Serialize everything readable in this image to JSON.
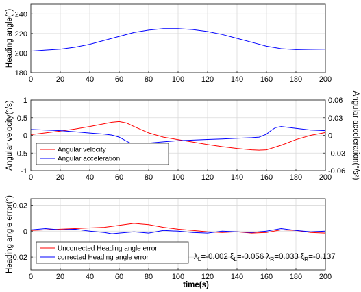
{
  "xlabel": "time(s)",
  "annotation": {
    "parts": [
      {
        "t": "λ"
      },
      {
        "t": "L",
        "sub": true
      },
      {
        "t": "=-0.002 ξ"
      },
      {
        "t": "L",
        "sub": true
      },
      {
        "t": "=-0.056 λ"
      },
      {
        "t": "R",
        "sub": true
      },
      {
        "t": "=0.033 ξ"
      },
      {
        "t": "R",
        "sub": true
      },
      {
        "t": "=-0.137"
      }
    ]
  },
  "chart_data": [
    {
      "type": "line",
      "xlim": [
        0,
        200
      ],
      "ylim": [
        180,
        250
      ],
      "xticks": [
        0,
        20,
        40,
        60,
        80,
        100,
        120,
        140,
        160,
        180,
        200
      ],
      "yticks": [
        180,
        200,
        220,
        240
      ],
      "ylabel": "Heading angle(°)",
      "grid": true,
      "series": [
        {
          "color": "#0000ff",
          "x": [
            0,
            10,
            20,
            30,
            40,
            50,
            60,
            70,
            80,
            90,
            100,
            110,
            120,
            130,
            140,
            150,
            160,
            170,
            180,
            190,
            200
          ],
          "y": [
            202,
            203,
            204,
            206,
            209,
            213,
            217,
            221,
            223.5,
            225,
            225,
            224,
            222,
            219,
            215,
            211,
            207,
            204.5,
            203.5,
            203.8,
            204
          ]
        }
      ]
    },
    {
      "type": "line",
      "xlim": [
        0,
        200
      ],
      "ylim": [
        -1,
        1
      ],
      "y2lim": [
        -0.06,
        0.06
      ],
      "xticks": [
        0,
        20,
        40,
        60,
        80,
        100,
        120,
        140,
        160,
        180,
        200
      ],
      "yticks": [
        -1,
        -0.5,
        0,
        0.5,
        1
      ],
      "y2ticks": [
        -0.06,
        -0.03,
        0,
        0.03,
        0.06
      ],
      "ytick_labels": [
        "-1",
        "-0.5",
        "0",
        "0.5",
        "1"
      ],
      "y2tick_labels": [
        "-0.06",
        "-0.03",
        "0",
        "0.03",
        "0.06"
      ],
      "ylabel": "Angular velocity(°/s)",
      "y2label": "Angular acceleration(°/s²)",
      "legend": "lower-left",
      "grid": true,
      "series": [
        {
          "name": "Angular velocity",
          "color": "#ff0000",
          "axis": "left",
          "x": [
            0,
            10,
            20,
            30,
            40,
            50,
            55,
            60,
            65,
            70,
            80,
            90,
            100,
            110,
            120,
            130,
            140,
            150,
            155,
            160,
            170,
            180,
            190,
            200
          ],
          "y": [
            0.02,
            0.07,
            0.12,
            0.18,
            0.25,
            0.33,
            0.37,
            0.39,
            0.35,
            0.25,
            0.07,
            -0.05,
            -0.12,
            -0.19,
            -0.26,
            -0.32,
            -0.37,
            -0.41,
            -0.42,
            -0.41,
            -0.28,
            -0.12,
            0.0,
            0.08
          ]
        },
        {
          "name": "Angular acceleration",
          "color": "#0000ff",
          "axis": "right",
          "x": [
            0,
            10,
            20,
            30,
            40,
            50,
            55,
            60,
            65,
            70,
            72,
            75,
            80,
            90,
            100,
            110,
            120,
            130,
            140,
            150,
            155,
            160,
            163,
            166,
            170,
            180,
            190,
            200
          ],
          "y": [
            0.01,
            0.009,
            0.008,
            0.006,
            0.004,
            0.002,
            0.0005,
            -0.003,
            -0.01,
            -0.016,
            -0.017,
            -0.016,
            -0.013,
            -0.011,
            -0.009,
            -0.008,
            -0.007,
            -0.006,
            -0.005,
            -0.004,
            -0.003,
            0.002,
            0.008,
            0.013,
            0.015,
            0.012,
            0.009,
            0.008
          ]
        }
      ]
    },
    {
      "type": "line",
      "xlim": [
        0,
        200
      ],
      "ylim": [
        -0.03,
        0.025
      ],
      "xticks": [
        0,
        20,
        40,
        60,
        80,
        100,
        120,
        140,
        160,
        180,
        200
      ],
      "yticks": [
        -0.02,
        0,
        0.02
      ],
      "ytick_labels": [
        "-0.02",
        "0",
        "0.02"
      ],
      "ylabel": "Heading angle error(°)",
      "legend": "lower-left",
      "grid": true,
      "series": [
        {
          "name": "Uncorrected  Heading angle error",
          "color": "#ff0000",
          "x": [
            0,
            10,
            20,
            30,
            40,
            50,
            60,
            70,
            75,
            80,
            90,
            100,
            110,
            120,
            130,
            140,
            150,
            160,
            170,
            180,
            190,
            200
          ],
          "y": [
            0.0005,
            0.001,
            0.0015,
            0.002,
            0.0025,
            0.003,
            0.0045,
            0.006,
            0.0055,
            0.005,
            0.003,
            0.0015,
            0.0005,
            -0.0005,
            -0.001,
            -0.0005,
            -0.0015,
            -0.001,
            0.001,
            0.0005,
            -0.001,
            -0.0015
          ]
        },
        {
          "name": "corrected  Heading angle error",
          "color": "#0000ff",
          "x": [
            0,
            10,
            20,
            30,
            40,
            50,
            55,
            60,
            70,
            80,
            90,
            100,
            110,
            120,
            130,
            140,
            150,
            160,
            170,
            180,
            190,
            200
          ],
          "y": [
            0.001,
            0.002,
            0.001,
            0.0015,
            0.0,
            -0.001,
            -0.002,
            -0.0015,
            -0.0005,
            -0.0015,
            0.0005,
            0.0,
            -0.001,
            -0.0015,
            0.0,
            -0.0005,
            -0.001,
            0.0,
            0.002,
            0.0005,
            -0.0005,
            0.0
          ]
        }
      ]
    }
  ]
}
